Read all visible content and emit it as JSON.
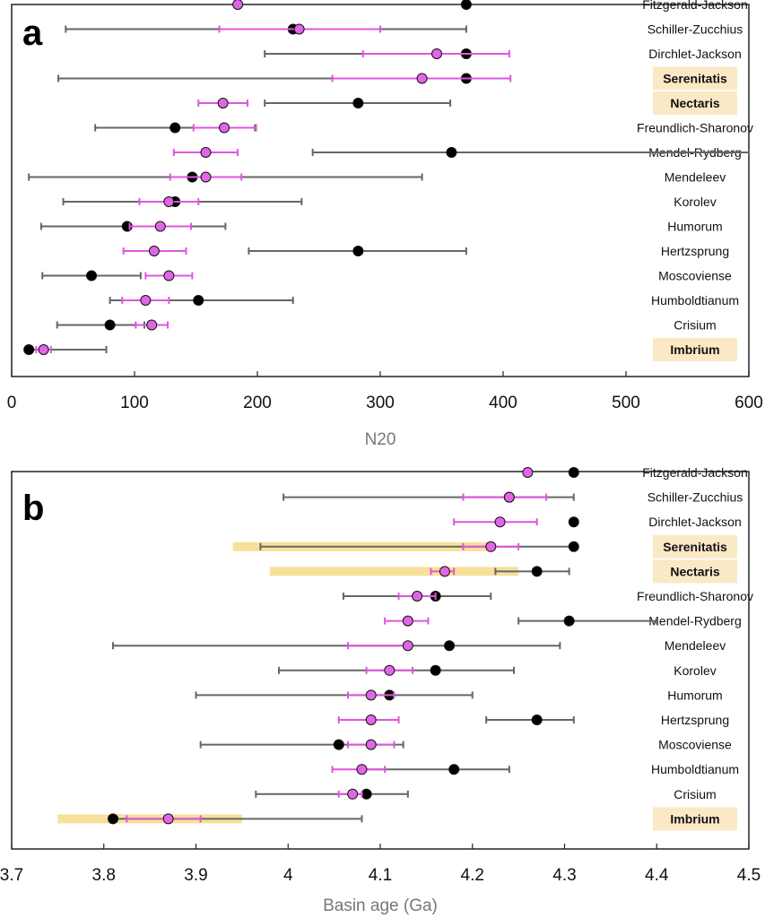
{
  "chart_data": [
    {
      "panel": "a",
      "type": "scatter",
      "xlabel": "N20",
      "xlim": [
        0,
        600
      ],
      "xticks": [
        0,
        100,
        200,
        300,
        400,
        500,
        600
      ],
      "tick_labels": [
        "0",
        "100",
        "200",
        "300",
        "400",
        "500",
        "600"
      ],
      "highlighted": [
        "Serenitatis",
        "Nectaris",
        "Imbrium"
      ],
      "colors": {
        "black_series": "#000000",
        "black_bar": "#666666",
        "magenta_series": "#e066e6",
        "magenta_bar": "#e055e0",
        "highlight_box": "#fbe9c6",
        "highlight_band": "#f5d67a"
      },
      "basins": [
        {
          "name": "Fitzgerald-Jackson",
          "black": {
            "x": 370
          },
          "magenta": {
            "x": 184
          }
        },
        {
          "name": "Schiller-Zucchius",
          "black": {
            "x": 229,
            "lo": 44,
            "hi": 370
          },
          "magenta": {
            "x": 234,
            "lo": 169,
            "hi": 300
          }
        },
        {
          "name": "Dirchlet-Jackson",
          "black": {
            "x": 370,
            "lo": 206
          },
          "magenta": {
            "x": 346,
            "lo": 286,
            "hi": 405
          }
        },
        {
          "name": "Serenitatis",
          "black": {
            "x": 370,
            "lo": 38
          },
          "magenta": {
            "x": 334,
            "lo": 261,
            "hi": 406
          }
        },
        {
          "name": "Nectaris",
          "black": {
            "x": 282,
            "lo": 206,
            "hi": 357
          },
          "magenta": {
            "x": 172,
            "lo": 152,
            "hi": 192
          }
        },
        {
          "name": "Freundlich-Sharonov",
          "black": {
            "x": 133,
            "lo": 68,
            "hi": 198
          },
          "magenta": {
            "x": 173,
            "lo": 148,
            "hi": 199
          }
        },
        {
          "name": "Mendel-Rydberg",
          "black": {
            "x": 358,
            "lo": 245,
            "hi": 600
          },
          "magenta": {
            "x": 158,
            "lo": 132,
            "hi": 184
          }
        },
        {
          "name": "Mendeleev",
          "black": {
            "x": 147,
            "lo": 14,
            "hi": 334
          },
          "magenta": {
            "x": 158,
            "lo": 129,
            "hi": 187
          }
        },
        {
          "name": "Korolev",
          "black": {
            "x": 133,
            "lo": 42,
            "hi": 236
          },
          "magenta": {
            "x": 128,
            "lo": 104,
            "hi": 152
          }
        },
        {
          "name": "Humorum",
          "black": {
            "x": 94,
            "lo": 24,
            "hi": 174
          },
          "magenta": {
            "x": 121,
            "lo": 96,
            "hi": 146
          }
        },
        {
          "name": "Hertzsprung",
          "black": {
            "x": 282,
            "lo": 193,
            "hi": 370
          },
          "magenta": {
            "x": 116,
            "lo": 91,
            "hi": 142
          }
        },
        {
          "name": "Moscoviense",
          "black": {
            "x": 65,
            "lo": 25,
            "hi": 105
          },
          "magenta": {
            "x": 128,
            "lo": 109,
            "hi": 147
          }
        },
        {
          "name": "Humboldtianum",
          "black": {
            "x": 152,
            "lo": 80,
            "hi": 229
          },
          "magenta": {
            "x": 109,
            "lo": 90,
            "hi": 128
          }
        },
        {
          "name": "Crisium",
          "black": {
            "x": 80,
            "lo": 37,
            "hi": 108
          },
          "magenta": {
            "x": 114,
            "lo": 101,
            "hi": 127
          }
        },
        {
          "name": "Imbrium",
          "black": {
            "x": 14,
            "lo": 14,
            "hi": 77
          },
          "magenta": {
            "x": 26,
            "lo": 20,
            "hi": 32
          }
        }
      ]
    },
    {
      "panel": "b",
      "type": "scatter",
      "xlabel": "Basin age (Ga)",
      "xlim": [
        3.7,
        4.5
      ],
      "xticks": [
        3.7,
        3.8,
        3.9,
        4.0,
        4.1,
        4.2,
        4.3,
        4.4,
        4.5
      ],
      "tick_labels": [
        "3.7",
        "3.8",
        "3.9",
        "4",
        "4.1",
        "4.2",
        "4.3",
        "4.4",
        "4.5"
      ],
      "highlighted": [
        "Serenitatis",
        "Nectaris",
        "Imbrium"
      ],
      "basins": [
        {
          "name": "Fitzgerald-Jackson",
          "black": {
            "x": 4.31
          },
          "magenta": {
            "x": 4.26
          }
        },
        {
          "name": "Schiller-Zucchius",
          "black": {
            "x": 4.24,
            "lo": 3.995,
            "hi": 4.31
          },
          "magenta": {
            "x": 4.24,
            "lo": 4.19,
            "hi": 4.28
          }
        },
        {
          "name": "Dirchlet-Jackson",
          "black": {
            "x": 4.31
          },
          "magenta": {
            "x": 4.23,
            "lo": 4.18,
            "hi": 4.27
          }
        },
        {
          "name": "Serenitatis",
          "black": {
            "x": 4.31,
            "lo": 3.97
          },
          "magenta": {
            "x": 4.22,
            "lo": 4.19,
            "hi": 4.25
          },
          "band": [
            3.94,
            4.22
          ]
        },
        {
          "name": "Nectaris",
          "black": {
            "x": 4.27,
            "lo": 4.225,
            "hi": 4.305
          },
          "magenta": {
            "x": 4.17,
            "lo": 4.155,
            "hi": 4.18
          },
          "band": [
            3.98,
            4.25
          ]
        },
        {
          "name": "Freundlich-Sharonov",
          "black": {
            "x": 4.16,
            "lo": 4.06,
            "hi": 4.22
          },
          "magenta": {
            "x": 4.14,
            "lo": 4.12,
            "hi": 4.16
          }
        },
        {
          "name": "Mendel-Rydberg",
          "black": {
            "x": 4.305,
            "lo": 4.25,
            "hi": 4.4
          },
          "magenta": {
            "x": 4.13,
            "lo": 4.105,
            "hi": 4.152
          }
        },
        {
          "name": "Mendeleev",
          "black": {
            "x": 4.175,
            "lo": 3.81,
            "hi": 4.295
          },
          "magenta": {
            "x": 4.13,
            "lo": 4.065
          }
        },
        {
          "name": "Korolev",
          "black": {
            "x": 4.16,
            "lo": 3.99,
            "hi": 4.245
          },
          "magenta": {
            "x": 4.11,
            "lo": 4.085,
            "hi": 4.135
          }
        },
        {
          "name": "Humorum",
          "black": {
            "x": 4.11,
            "lo": 3.9,
            "hi": 4.2
          },
          "magenta": {
            "x": 4.09,
            "lo": 4.065,
            "hi": 4.115
          }
        },
        {
          "name": "Hertzsprung",
          "black": {
            "x": 4.27,
            "lo": 4.215,
            "hi": 4.31
          },
          "magenta": {
            "x": 4.09,
            "lo": 4.055,
            "hi": 4.12
          }
        },
        {
          "name": "Moscoviense",
          "black": {
            "x": 4.055,
            "lo": 3.905,
            "hi": 4.125
          },
          "magenta": {
            "x": 4.09,
            "lo": 4.065,
            "hi": 4.115
          }
        },
        {
          "name": "Humboldtianum",
          "black": {
            "x": 4.18,
            "lo": 4.08,
            "hi": 4.24
          },
          "magenta": {
            "x": 4.08,
            "lo": 4.048,
            "hi": 4.105
          }
        },
        {
          "name": "Crisium",
          "black": {
            "x": 4.085,
            "lo": 3.965,
            "hi": 4.13
          },
          "magenta": {
            "x": 4.07,
            "lo": 4.055,
            "hi": 4.08
          }
        },
        {
          "name": "Imbrium",
          "black": {
            "x": 3.81,
            "lo": 3.81,
            "hi": 4.08
          },
          "magenta": {
            "x": 3.87,
            "lo": 3.825,
            "hi": 3.905
          },
          "band": [
            3.75,
            3.95
          ]
        }
      ]
    }
  ]
}
